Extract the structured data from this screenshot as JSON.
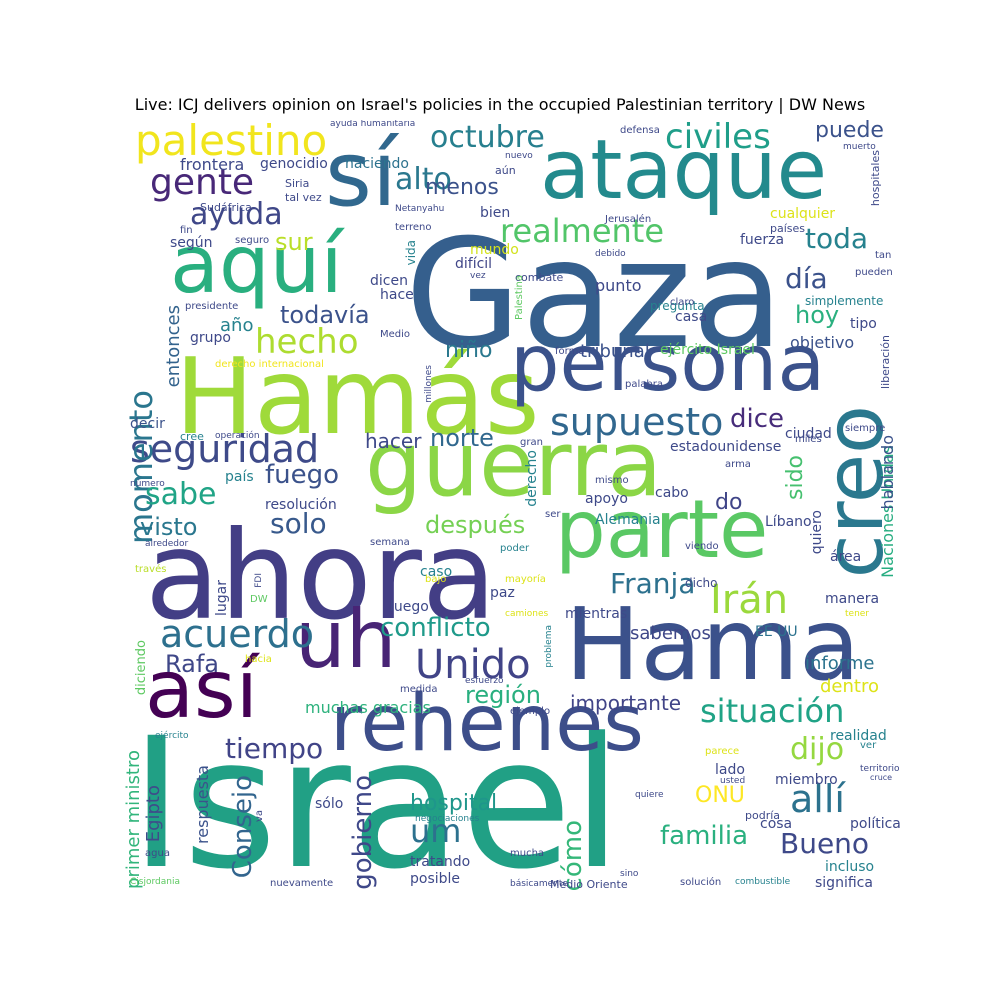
{
  "title": "Live: ICJ delivers opinion on Israel's policies in the occupied Palestinian territory | DW News",
  "words": [
    {
      "text": "Israel",
      "color": "#21a085"
    },
    {
      "text": "Gaza",
      "color": "#355f8d"
    },
    {
      "text": "ahora",
      "color": "#433e85"
    },
    {
      "text": "Hama",
      "color": "#3b518b"
    },
    {
      "text": "Hamás",
      "color": "#9fda3a"
    },
    {
      "text": "guerra",
      "color": "#8bd646"
    },
    {
      "text": "persona",
      "color": "#3b528b"
    },
    {
      "text": "ataque",
      "color": "#238a8d"
    },
    {
      "text": "parte",
      "color": "#5ac864"
    },
    {
      "text": "rehenes",
      "color": "#3d4e8a"
    },
    {
      "text": "así",
      "color": "#440154"
    },
    {
      "text": "uh",
      "color": "#482475"
    },
    {
      "text": "aquí",
      "color": "#29af7f"
    },
    {
      "text": "sí",
      "color": "#31688e"
    },
    {
      "text": "creo",
      "color": "#2a788e"
    },
    {
      "text": "palestino",
      "color": "#f1e51d"
    },
    {
      "text": "Unido",
      "color": "#414487"
    },
    {
      "text": "allí",
      "color": "#2c728e"
    },
    {
      "text": "seguridad",
      "color": "#3e4a89"
    },
    {
      "text": "supuesto",
      "color": "#31678e"
    },
    {
      "text": "situación",
      "color": "#20a386"
    },
    {
      "text": "acuerdo",
      "color": "#2d708e"
    },
    {
      "text": "realmente",
      "color": "#52c569"
    },
    {
      "text": "civiles",
      "color": "#1f9e89"
    },
    {
      "text": "octubre",
      "color": "#277f8e"
    },
    {
      "text": "gente",
      "color": "#482878"
    },
    {
      "text": "momento",
      "color": "#2a768e"
    },
    {
      "text": "Irán",
      "color": "#9bd93c"
    },
    {
      "text": "alto",
      "color": "#2a788e"
    },
    {
      "text": "ayuda",
      "color": "#3f4788"
    },
    {
      "text": "hecho",
      "color": "#addc30"
    },
    {
      "text": "sabe",
      "color": "#20a486"
    },
    {
      "text": "Franja",
      "color": "#2d718e"
    },
    {
      "text": "toda",
      "color": "#26828e"
    },
    {
      "text": "día",
      "color": "#3b528b"
    },
    {
      "text": "conflicto",
      "color": "#1f9a8a"
    },
    {
      "text": "dijo",
      "color": "#95d840"
    },
    {
      "text": "um",
      "color": "#2d718e"
    },
    {
      "text": "Bueno",
      "color": "#3e4989"
    },
    {
      "text": "gobierno",
      "color": "#3f4889"
    },
    {
      "text": "Consejo",
      "color": "#32658e"
    },
    {
      "text": "tiempo",
      "color": "#414487"
    },
    {
      "text": "cómo",
      "color": "#35b779"
    },
    {
      "text": "familia",
      "color": "#2ab07f"
    },
    {
      "text": "hospital",
      "color": "#1f968b"
    },
    {
      "text": "Rafa",
      "color": "#3f4788"
    },
    {
      "text": "fuego",
      "color": "#3b528b"
    },
    {
      "text": "solo",
      "color": "#38598c"
    },
    {
      "text": "después",
      "color": "#75d054"
    },
    {
      "text": "visto",
      "color": "#2a778e"
    },
    {
      "text": "norte",
      "color": "#31688e"
    },
    {
      "text": "hoy",
      "color": "#2ab07f"
    },
    {
      "text": "dice",
      "color": "#472c7a"
    },
    {
      "text": "sido",
      "color": "#46c06f"
    },
    {
      "text": "todavía",
      "color": "#3b528b"
    },
    {
      "text": "región",
      "color": "#29af7f"
    },
    {
      "text": "ONU",
      "color": "#fde725"
    },
    {
      "text": "Egipto",
      "color": "#3e4c8a"
    },
    {
      "text": "puede",
      "color": "#3b528b"
    },
    {
      "text": "sur",
      "color": "#bade28"
    },
    {
      "text": "menos",
      "color": "#3b528b"
    },
    {
      "text": "niño",
      "color": "#2a788e"
    },
    {
      "text": "entonces",
      "color": "#33638d"
    },
    {
      "text": "do",
      "color": "#404588"
    },
    {
      "text": "hacer",
      "color": "#3e4989"
    },
    {
      "text": "informe",
      "color": "#2c738e"
    },
    {
      "text": "importante",
      "color": "#414487"
    },
    {
      "text": "tribunal",
      "color": "#3b528b"
    },
    {
      "text": "ejército Israel",
      "color": "#5ec962"
    },
    {
      "text": "primer ministro",
      "color": "#31b57b"
    },
    {
      "text": "respuesta",
      "color": "#3b528b"
    },
    {
      "text": "Naciones Unidas",
      "color": "#27ad81"
    },
    {
      "text": "hablando",
      "color": "#3b528b"
    },
    {
      "text": "sabemos",
      "color": "#3f4788"
    },
    {
      "text": "dentro",
      "color": "#dde318"
    },
    {
      "text": "muchas gracias",
      "color": "#2db27d"
    },
    {
      "text": "frontera",
      "color": "#3e4989"
    },
    {
      "text": "genocidio",
      "color": "#3e4989"
    },
    {
      "text": "haciendo",
      "color": "#2c728e"
    },
    {
      "text": "decir",
      "color": "#3b528b"
    },
    {
      "text": "punto",
      "color": "#3e4989"
    },
    {
      "text": "tipo",
      "color": "#3e4989"
    },
    {
      "text": "año",
      "color": "#26828e"
    },
    {
      "text": "grupo",
      "color": "#3e4989"
    },
    {
      "text": "objetivo",
      "color": "#3b528b"
    },
    {
      "text": "casa",
      "color": "#3e4989"
    },
    {
      "text": "mundo",
      "color": "#d2e21b"
    },
    {
      "text": "difícil",
      "color": "#404688"
    },
    {
      "text": "bien",
      "color": "#3e4989"
    },
    {
      "text": "dicen",
      "color": "#3e4989"
    },
    {
      "text": "hace",
      "color": "#3e4989"
    },
    {
      "text": "fuerza",
      "color": "#3e4989"
    },
    {
      "text": "cualquier",
      "color": "#dde318"
    },
    {
      "text": "según",
      "color": "#3e4989"
    },
    {
      "text": "vida",
      "color": "#26828e"
    },
    {
      "text": "ciudad",
      "color": "#3e4989"
    },
    {
      "text": "resolución",
      "color": "#3e4989"
    },
    {
      "text": "país",
      "color": "#26828e"
    },
    {
      "text": "apoyo",
      "color": "#3e4989"
    },
    {
      "text": "Alemania",
      "color": "#26828e"
    },
    {
      "text": "Líbano",
      "color": "#3e4989"
    },
    {
      "text": "quiero",
      "color": "#3e4989"
    },
    {
      "text": "área",
      "color": "#3e4989"
    },
    {
      "text": "lugar",
      "color": "#3e4989"
    },
    {
      "text": "caso",
      "color": "#26828e"
    },
    {
      "text": "luego",
      "color": "#3e4989"
    },
    {
      "text": "paz",
      "color": "#3e4989"
    },
    {
      "text": "mientras",
      "color": "#3e4989"
    },
    {
      "text": "EE UU",
      "color": "#2c728e"
    },
    {
      "text": "manera",
      "color": "#3e4989"
    },
    {
      "text": "lado",
      "color": "#3e4989"
    },
    {
      "text": "miembro",
      "color": "#3e4989"
    },
    {
      "text": "realidad",
      "color": "#26828e"
    },
    {
      "text": "cosa",
      "color": "#3e4989"
    },
    {
      "text": "política",
      "color": "#3e4989"
    },
    {
      "text": "incluso",
      "color": "#26828e"
    },
    {
      "text": "significa",
      "color": "#3e4989"
    },
    {
      "text": "tratando",
      "color": "#3e4989"
    },
    {
      "text": "posible",
      "color": "#3e4989"
    },
    {
      "text": "sólo",
      "color": "#3e4989"
    },
    {
      "text": "estadounidense",
      "color": "#3e4989"
    },
    {
      "text": "derecho",
      "color": "#26828e"
    },
    {
      "text": "cabo",
      "color": "#3e4989"
    },
    {
      "text": "simplemente",
      "color": "#26828e"
    },
    {
      "text": "liberación",
      "color": "#3e4989"
    },
    {
      "text": "hospitales",
      "color": "#3e4989"
    },
    {
      "text": "pregunta",
      "color": "#26828e"
    },
    {
      "text": "diciendo",
      "color": "#5ec962"
    },
    {
      "text": "ayuda humanitaria",
      "color": "#3e4989"
    },
    {
      "text": "defensa",
      "color": "#3e4989"
    },
    {
      "text": "muerto",
      "color": "#3e4989"
    },
    {
      "text": "nuevo",
      "color": "#3e4989"
    },
    {
      "text": "aún",
      "color": "#3e4989"
    },
    {
      "text": "Siria",
      "color": "#3e4989"
    },
    {
      "text": "tal vez",
      "color": "#3e4989"
    },
    {
      "text": "Sudáfrica",
      "color": "#3e4989"
    },
    {
      "text": "Netanyahu",
      "color": "#3e4989"
    },
    {
      "text": "Jerusalén",
      "color": "#3e4989"
    },
    {
      "text": "países",
      "color": "#3e4989"
    },
    {
      "text": "fin",
      "color": "#3e4989"
    },
    {
      "text": "seguro",
      "color": "#3e4989"
    },
    {
      "text": "terreno",
      "color": "#3e4989"
    },
    {
      "text": "debido",
      "color": "#3e4989"
    },
    {
      "text": "tan",
      "color": "#3e4989"
    },
    {
      "text": "vez",
      "color": "#3e4989"
    },
    {
      "text": "combate",
      "color": "#3e4989"
    },
    {
      "text": "claro",
      "color": "#3e4989"
    },
    {
      "text": "pueden",
      "color": "#3e4989"
    },
    {
      "text": "presidente",
      "color": "#3e4989"
    },
    {
      "text": "Palestina",
      "color": "#5ec962"
    },
    {
      "text": "Medio",
      "color": "#3e4989"
    },
    {
      "text": "forma",
      "color": "#3e4989"
    },
    {
      "text": "millones",
      "color": "#3e4989"
    },
    {
      "text": "derecho internacional",
      "color": "#f1e51d"
    },
    {
      "text": "palabra",
      "color": "#3e4989"
    },
    {
      "text": "cree",
      "color": "#26828e"
    },
    {
      "text": "operación",
      "color": "#3e4989"
    },
    {
      "text": "gran",
      "color": "#3e4989"
    },
    {
      "text": "miles",
      "color": "#3e4989"
    },
    {
      "text": "siempre",
      "color": "#3e4989"
    },
    {
      "text": "arma",
      "color": "#3e4989"
    },
    {
      "text": "número",
      "color": "#3e4989"
    },
    {
      "text": "mismo",
      "color": "#3e4989"
    },
    {
      "text": "ser",
      "color": "#3e4989"
    },
    {
      "text": "alrededor",
      "color": "#3e4989"
    },
    {
      "text": "semana",
      "color": "#3e4989"
    },
    {
      "text": "poder",
      "color": "#26828e"
    },
    {
      "text": "viendo",
      "color": "#3e4989"
    },
    {
      "text": "través",
      "color": "#bade28"
    },
    {
      "text": "FDI",
      "color": "#3e4989"
    },
    {
      "text": "bajo",
      "color": "#dde318"
    },
    {
      "text": "mayoría",
      "color": "#dde318"
    },
    {
      "text": "dicho",
      "color": "#3e4989"
    },
    {
      "text": "DW",
      "color": "#5ec962"
    },
    {
      "text": "camiones",
      "color": "#dde318"
    },
    {
      "text": "problema",
      "color": "#26828e"
    },
    {
      "text": "tener",
      "color": "#dde318"
    },
    {
      "text": "hacia",
      "color": "#dde318"
    },
    {
      "text": "esfuerzo",
      "color": "#3e4989"
    },
    {
      "text": "medida",
      "color": "#3e4989"
    },
    {
      "text": "ejemplo",
      "color": "#3e4989"
    },
    {
      "text": "ejército",
      "color": "#26828e"
    },
    {
      "text": "parece",
      "color": "#dde318"
    },
    {
      "text": "ver",
      "color": "#26828e"
    },
    {
      "text": "usted",
      "color": "#3e4989"
    },
    {
      "text": "territorio",
      "color": "#3e4989"
    },
    {
      "text": "cruce",
      "color": "#3e4989"
    },
    {
      "text": "quiere",
      "color": "#3e4989"
    },
    {
      "text": "va",
      "color": "#3e4989"
    },
    {
      "text": "negociaciones",
      "color": "#26828e"
    },
    {
      "text": "podría",
      "color": "#3e4989"
    },
    {
      "text": "agua",
      "color": "#3e4989"
    },
    {
      "text": "mucha",
      "color": "#3e4989"
    },
    {
      "text": "sino",
      "color": "#3e4989"
    },
    {
      "text": "Cisjordania",
      "color": "#5ec962"
    },
    {
      "text": "nuevamente",
      "color": "#3e4989"
    },
    {
      "text": "básicamente",
      "color": "#3e4989"
    },
    {
      "text": "Medio Oriente",
      "color": "#3e4989"
    },
    {
      "text": "solución",
      "color": "#3e4989"
    },
    {
      "text": "combustible",
      "color": "#26828e"
    }
  ]
}
